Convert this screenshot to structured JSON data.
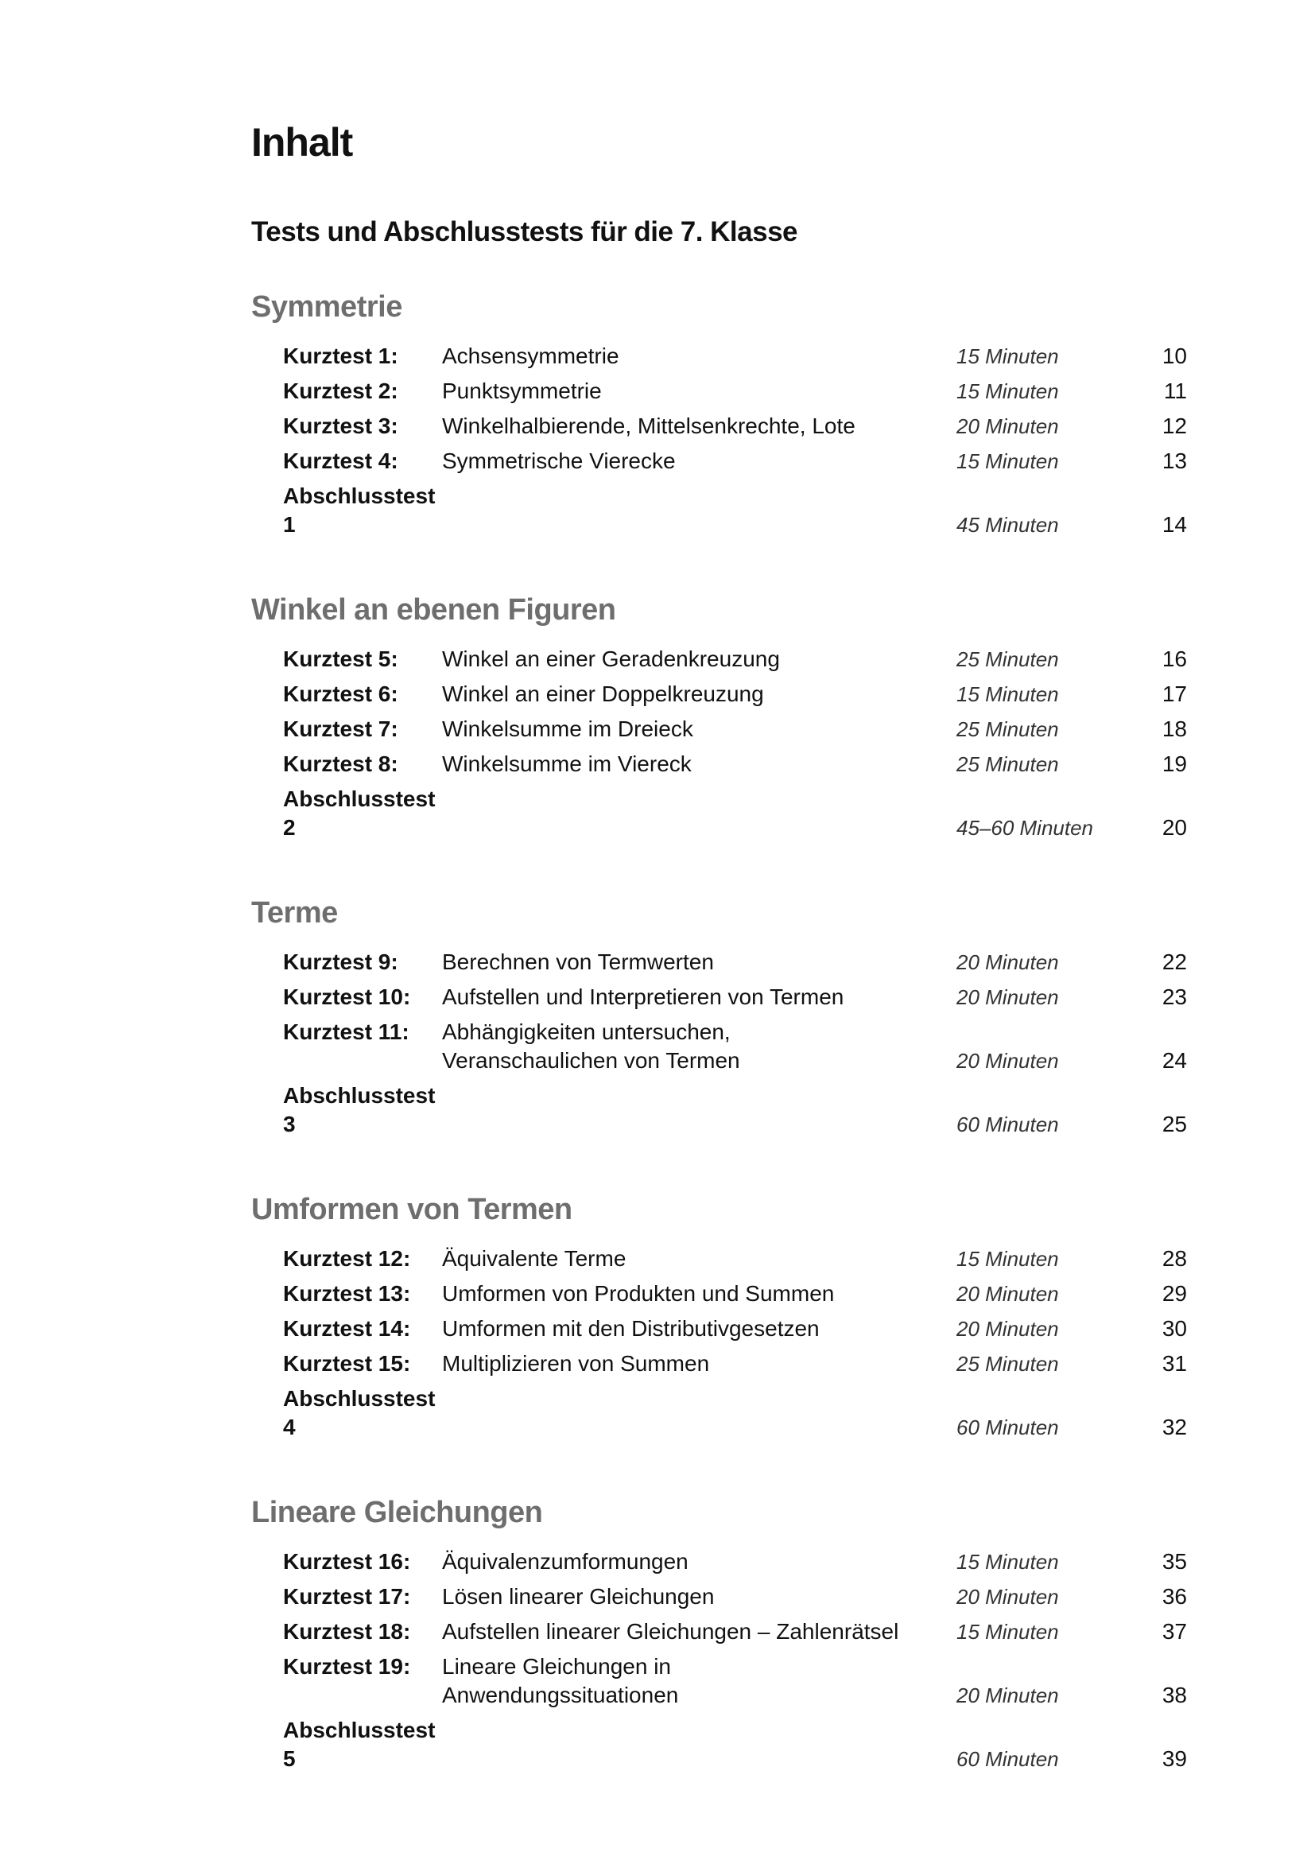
{
  "title": "Inhalt",
  "subtitle": "Tests und Abschlusstests für die 7. Klasse",
  "sections": [
    {
      "heading": "Symmetrie",
      "rows": [
        {
          "label": "Kurztest 1:",
          "topic": "Achsensymmetrie",
          "minutes": "15 Minuten",
          "page": "10"
        },
        {
          "label": "Kurztest 2:",
          "topic": "Punktsymmetrie",
          "minutes": "15 Minuten",
          "page": "11"
        },
        {
          "label": "Kurztest 3:",
          "topic": "Winkelhalbierende, Mittelsenkrechte, Lote",
          "minutes": "20 Minuten",
          "page": "12"
        },
        {
          "label": "Kurztest 4:",
          "topic": "Symmetrische Vierecke",
          "minutes": "15 Minuten",
          "page": "13"
        },
        {
          "label": "Abschlusstest 1",
          "topic": "",
          "minutes": "45 Minuten",
          "page": "14"
        }
      ]
    },
    {
      "heading": "Winkel an ebenen Figuren",
      "rows": [
        {
          "label": "Kurztest 5:",
          "topic": "Winkel an einer Geradenkreuzung",
          "minutes": "25 Minuten",
          "page": "16"
        },
        {
          "label": "Kurztest 6:",
          "topic": "Winkel an einer Doppelkreuzung",
          "minutes": "15 Minuten",
          "page": "17"
        },
        {
          "label": "Kurztest 7:",
          "topic": "Winkelsumme im Dreieck",
          "minutes": "25 Minuten",
          "page": "18"
        },
        {
          "label": "Kurztest 8:",
          "topic": "Winkelsumme im Viereck",
          "minutes": "25 Minuten",
          "page": "19"
        },
        {
          "label": "Abschlusstest 2",
          "topic": "",
          "minutes": "45–60 Minuten",
          "page": "20"
        }
      ]
    },
    {
      "heading": "Terme",
      "rows": [
        {
          "label": "Kurztest 9:",
          "topic": "Berechnen von Termwerten",
          "minutes": "20 Minuten",
          "page": "22"
        },
        {
          "label": "Kurztest 10:",
          "topic": "Aufstellen und Interpretieren von Termen",
          "minutes": "20 Minuten",
          "page": "23"
        },
        {
          "label": "Kurztest 11:",
          "topic": "Abhängigkeiten untersuchen, Veranschaulichen von Termen",
          "minutes": "20 Minuten",
          "page": "24"
        },
        {
          "label": "Abschlusstest 3",
          "topic": "",
          "minutes": "60 Minuten",
          "page": "25"
        }
      ]
    },
    {
      "heading": "Umformen von Termen",
      "rows": [
        {
          "label": "Kurztest 12:",
          "topic": "Äquivalente Terme",
          "minutes": "15 Minuten",
          "page": "28"
        },
        {
          "label": "Kurztest 13:",
          "topic": "Umformen von Produkten und Summen",
          "minutes": "20 Minuten",
          "page": "29"
        },
        {
          "label": "Kurztest 14:",
          "topic": "Umformen mit den Distributivgesetzen",
          "minutes": "20 Minuten",
          "page": "30"
        },
        {
          "label": "Kurztest 15:",
          "topic": "Multiplizieren von Summen",
          "minutes": "25 Minuten",
          "page": "31"
        },
        {
          "label": "Abschlusstest 4",
          "topic": "",
          "minutes": "60 Minuten",
          "page": "32"
        }
      ]
    },
    {
      "heading": "Lineare Gleichungen",
      "rows": [
        {
          "label": "Kurztest 16:",
          "topic": "Äquivalenzumformungen",
          "minutes": "15 Minuten",
          "page": "35"
        },
        {
          "label": "Kurztest 17:",
          "topic": "Lösen linearer Gleichungen",
          "minutes": "20 Minuten",
          "page": "36"
        },
        {
          "label": "Kurztest 18:",
          "topic": "Aufstellen linearer Gleichungen – Zahlenrätsel",
          "minutes": "15 Minuten",
          "page": "37"
        },
        {
          "label": "Kurztest 19:",
          "topic": "Lineare Gleichungen in Anwendungssituationen",
          "minutes": "20 Minuten",
          "page": "38"
        },
        {
          "label": "Abschlusstest 5",
          "topic": "",
          "minutes": "60 Minuten",
          "page": "39"
        }
      ]
    }
  ]
}
